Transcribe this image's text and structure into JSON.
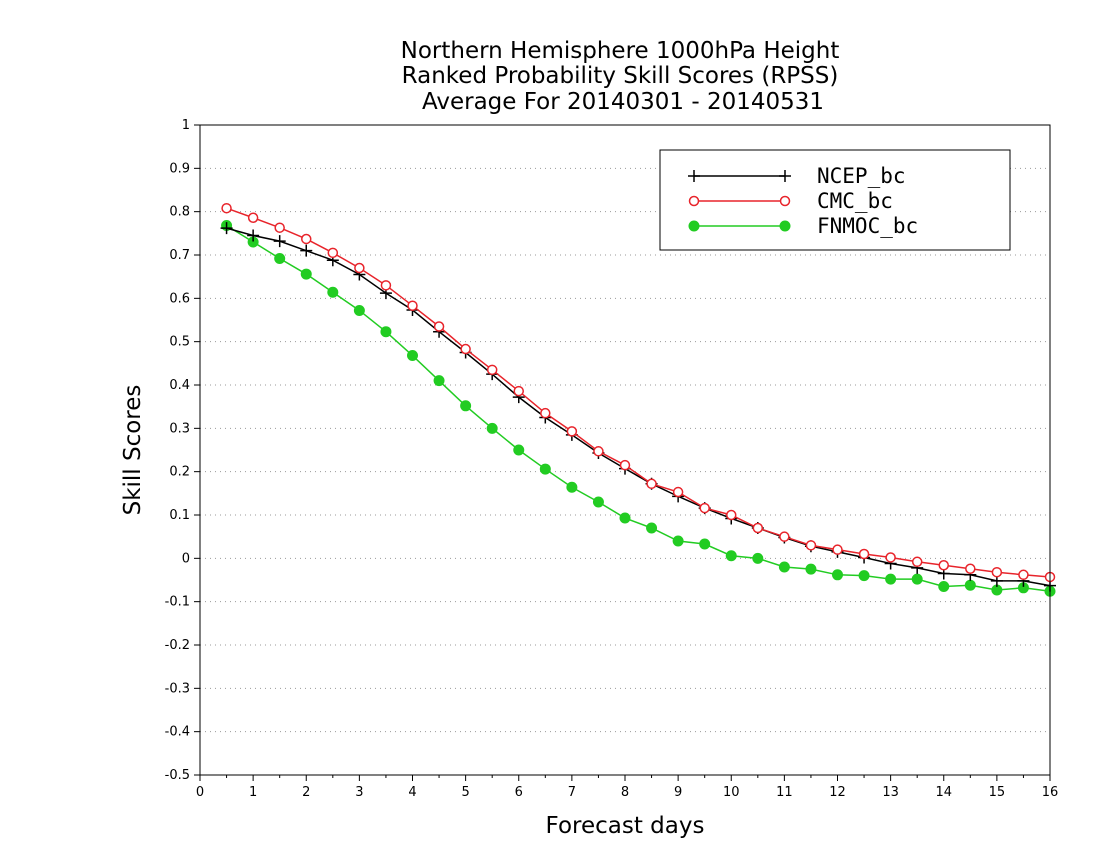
{
  "chart_data": {
    "type": "line",
    "title_lines": [
      "Northern Hemisphere 1000hPa Height",
      "Ranked Probability Skill Scores (RPSS)",
      "Average For 20140301 - 20140531"
    ],
    "xlabel": "Forecast days",
    "ylabel": "Skill Scores",
    "xlim": [
      0,
      16
    ],
    "ylim": [
      -0.5,
      1
    ],
    "x_ticks": [
      "0",
      "1",
      "2",
      "3",
      "4",
      "5",
      "6",
      "7",
      "8",
      "9",
      "10",
      "11",
      "12",
      "13",
      "14",
      "15",
      "16"
    ],
    "y_ticks": [
      "1",
      "0.9",
      "0.8",
      "0.7",
      "0.6",
      "0.5",
      "0.4",
      "0.3",
      "0.2",
      "0.1",
      "0",
      "-0.1",
      "-0.2",
      "-0.3",
      "-0.4",
      "-0.5"
    ],
    "grid": "horizontal dotted",
    "legend_position": "top-right",
    "x": [
      0.5,
      1,
      1.5,
      2,
      2.5,
      3,
      3.5,
      4,
      4.5,
      5,
      5.5,
      6,
      6.5,
      7,
      7.5,
      8,
      8.5,
      9,
      9.5,
      10,
      10.5,
      11,
      11.5,
      12,
      12.5,
      13,
      13.5,
      14,
      14.5,
      15,
      15.5,
      16
    ],
    "series": [
      {
        "name": "NCEP_bc",
        "color": "#000000",
        "marker": "plus",
        "values": [
          0.762,
          0.745,
          0.732,
          0.71,
          0.688,
          0.655,
          0.612,
          0.573,
          0.523,
          0.475,
          0.425,
          0.372,
          0.325,
          0.285,
          0.243,
          0.207,
          0.172,
          0.143,
          0.116,
          0.092,
          0.07,
          0.048,
          0.028,
          0.015,
          0.002,
          -0.012,
          -0.022,
          -0.035,
          -0.038,
          -0.052,
          -0.052,
          -0.063
        ]
      },
      {
        "name": "CMC_bc",
        "color": "#e8242b",
        "marker": "open-circle",
        "values": [
          0.808,
          0.786,
          0.763,
          0.737,
          0.705,
          0.67,
          0.63,
          0.583,
          0.535,
          0.483,
          0.435,
          0.386,
          0.335,
          0.293,
          0.247,
          0.215,
          0.172,
          0.153,
          0.116,
          0.1,
          0.07,
          0.05,
          0.03,
          0.02,
          0.01,
          0.002,
          -0.008,
          -0.016,
          -0.024,
          -0.032,
          -0.038,
          -0.043
        ]
      },
      {
        "name": "FNMOC_bc",
        "color": "#22cc22",
        "marker": "filled-circle",
        "values": [
          0.768,
          0.73,
          0.692,
          0.656,
          0.614,
          0.572,
          0.523,
          0.468,
          0.41,
          0.352,
          0.3,
          0.25,
          0.206,
          0.164,
          0.13,
          0.093,
          0.07,
          0.04,
          0.033,
          0.006,
          0.0,
          -0.02,
          -0.025,
          -0.038,
          -0.04,
          -0.048,
          -0.048,
          -0.065,
          -0.062,
          -0.073,
          -0.068,
          -0.076
        ]
      }
    ]
  }
}
